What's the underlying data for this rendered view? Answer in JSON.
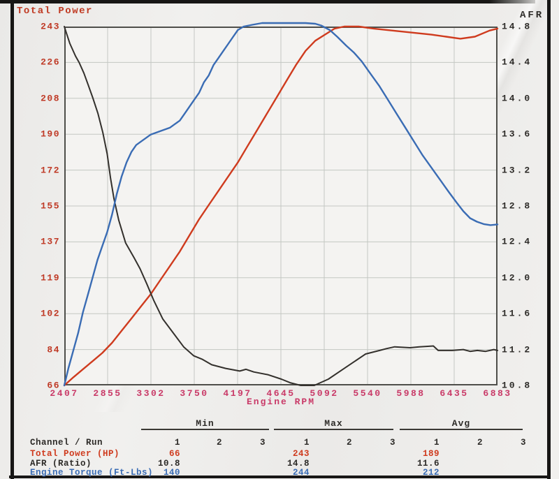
{
  "chart_data": {
    "type": "line",
    "xlabel": "Engine RPM",
    "grid": true,
    "x_axis": {
      "min": 2407,
      "max": 6883,
      "ticks": [
        2407,
        2855,
        3302,
        3750,
        4197,
        4645,
        5092,
        5540,
        5988,
        6435,
        6883
      ]
    },
    "left_axis": {
      "title": "Total Power",
      "min": 66,
      "max": 243,
      "ticks": [
        243,
        226,
        208,
        190,
        172,
        155,
        137,
        119,
        102,
        84,
        66
      ]
    },
    "right_axis": {
      "title": "AFR",
      "min": 10.8,
      "max": 14.8,
      "ticks": [
        "14.8",
        "14.4",
        "14.0",
        "13.6",
        "13.2",
        "12.8",
        "12.4",
        "12.0",
        "11.6",
        "11.2",
        "10.8"
      ]
    },
    "series": [
      {
        "name": "Total Power (HP)",
        "color": "#cf3b1e",
        "scale_min": 66,
        "scale_max": 243,
        "points": [
          [
            2407,
            66
          ],
          [
            2500,
            70
          ],
          [
            2600,
            74
          ],
          [
            2700,
            78
          ],
          [
            2800,
            82
          ],
          [
            2900,
            87
          ],
          [
            3000,
            93
          ],
          [
            3100,
            99
          ],
          [
            3200,
            105
          ],
          [
            3300,
            111
          ],
          [
            3400,
            118
          ],
          [
            3500,
            125
          ],
          [
            3600,
            132
          ],
          [
            3700,
            140
          ],
          [
            3800,
            148
          ],
          [
            3900,
            155
          ],
          [
            4000,
            162
          ],
          [
            4100,
            169
          ],
          [
            4200,
            176
          ],
          [
            4300,
            184
          ],
          [
            4400,
            192
          ],
          [
            4500,
            200
          ],
          [
            4600,
            208
          ],
          [
            4700,
            216
          ],
          [
            4800,
            224
          ],
          [
            4900,
            231
          ],
          [
            5000,
            236
          ],
          [
            5100,
            239
          ],
          [
            5200,
            242
          ],
          [
            5300,
            243
          ],
          [
            5450,
            243
          ],
          [
            5600,
            242
          ],
          [
            5800,
            241
          ],
          [
            6000,
            240
          ],
          [
            6200,
            239
          ],
          [
            6350,
            238
          ],
          [
            6500,
            237
          ],
          [
            6650,
            238
          ],
          [
            6800,
            241
          ],
          [
            6883,
            242
          ]
        ]
      },
      {
        "name": "AFR (Ratio)",
        "color": "#33302c",
        "scale_min": 10.8,
        "scale_max": 14.8,
        "points": [
          [
            2407,
            14.8
          ],
          [
            2465,
            14.61
          ],
          [
            2523,
            14.47
          ],
          [
            2560,
            14.4
          ],
          [
            2610,
            14.28
          ],
          [
            2650,
            14.16
          ],
          [
            2700,
            14.01
          ],
          [
            2755,
            13.83
          ],
          [
            2805,
            13.62
          ],
          [
            2850,
            13.38
          ],
          [
            2885,
            13.11
          ],
          [
            2920,
            12.88
          ],
          [
            2970,
            12.64
          ],
          [
            3040,
            12.39
          ],
          [
            3130,
            12.22
          ],
          [
            3190,
            12.1
          ],
          [
            3260,
            11.93
          ],
          [
            3330,
            11.75
          ],
          [
            3425,
            11.54
          ],
          [
            3550,
            11.36
          ],
          [
            3640,
            11.23
          ],
          [
            3745,
            11.13
          ],
          [
            3835,
            11.09
          ],
          [
            3930,
            11.03
          ],
          [
            4075,
            10.99
          ],
          [
            4220,
            10.96
          ],
          [
            4285,
            10.98
          ],
          [
            4365,
            10.95
          ],
          [
            4510,
            10.92
          ],
          [
            4650,
            10.87
          ],
          [
            4740,
            10.83
          ],
          [
            4850,
            10.8
          ],
          [
            4990,
            10.8
          ],
          [
            5135,
            10.87
          ],
          [
            5300,
            10.99
          ],
          [
            5520,
            11.15
          ],
          [
            5665,
            11.19
          ],
          [
            5735,
            11.21
          ],
          [
            5820,
            11.23
          ],
          [
            5980,
            11.22
          ],
          [
            6075,
            11.23
          ],
          [
            6220,
            11.24
          ],
          [
            6270,
            11.19
          ],
          [
            6415,
            11.19
          ],
          [
            6530,
            11.2
          ],
          [
            6600,
            11.18
          ],
          [
            6675,
            11.19
          ],
          [
            6760,
            11.18
          ],
          [
            6845,
            11.2
          ],
          [
            6883,
            11.19
          ]
        ]
      },
      {
        "name": "Engine Torque (Ft-Lbs)",
        "color": "#3a6cb4",
        "scale_min": 140,
        "scale_max": 243,
        "points": [
          [
            2407,
            140
          ],
          [
            2450,
            145
          ],
          [
            2500,
            150
          ],
          [
            2550,
            155
          ],
          [
            2600,
            161
          ],
          [
            2650,
            166
          ],
          [
            2700,
            171
          ],
          [
            2750,
            176
          ],
          [
            2800,
            180
          ],
          [
            2850,
            184
          ],
          [
            2900,
            189
          ],
          [
            2950,
            195
          ],
          [
            3000,
            200
          ],
          [
            3050,
            204
          ],
          [
            3100,
            207
          ],
          [
            3150,
            209
          ],
          [
            3200,
            210
          ],
          [
            3250,
            211
          ],
          [
            3300,
            212
          ],
          [
            3400,
            213
          ],
          [
            3500,
            214
          ],
          [
            3550,
            215
          ],
          [
            3600,
            216
          ],
          [
            3650,
            218
          ],
          [
            3700,
            220
          ],
          [
            3750,
            222
          ],
          [
            3800,
            224
          ],
          [
            3850,
            227
          ],
          [
            3900,
            229
          ],
          [
            3950,
            232
          ],
          [
            4000,
            234
          ],
          [
            4050,
            236
          ],
          [
            4100,
            238
          ],
          [
            4150,
            240
          ],
          [
            4200,
            242
          ],
          [
            4260,
            243
          ],
          [
            4350,
            243.5
          ],
          [
            4450,
            244
          ],
          [
            4600,
            244
          ],
          [
            4750,
            244
          ],
          [
            4900,
            244
          ],
          [
            5000,
            243.8
          ],
          [
            5060,
            243.3
          ],
          [
            5150,
            242
          ],
          [
            5230,
            240
          ],
          [
            5320,
            237.5
          ],
          [
            5400,
            235.5
          ],
          [
            5480,
            233
          ],
          [
            5570,
            229.5
          ],
          [
            5660,
            226
          ],
          [
            5750,
            222
          ],
          [
            5840,
            218
          ],
          [
            5930,
            214
          ],
          [
            6020,
            210
          ],
          [
            6110,
            206
          ],
          [
            6200,
            202.5
          ],
          [
            6290,
            199
          ],
          [
            6380,
            195.5
          ],
          [
            6460,
            192.5
          ],
          [
            6530,
            190
          ],
          [
            6600,
            188
          ],
          [
            6670,
            187
          ],
          [
            6740,
            186.3
          ],
          [
            6810,
            186
          ],
          [
            6883,
            186.2
          ]
        ]
      }
    ]
  },
  "summary_table": {
    "row_header": "Channel / Run",
    "runs": [
      "1",
      "2",
      "3"
    ],
    "groups": [
      {
        "label": "Min",
        "key": "min"
      },
      {
        "label": "Max",
        "key": "max"
      },
      {
        "label": "Avg",
        "key": "avg"
      }
    ],
    "rows": [
      {
        "label": "Total Power (HP)",
        "color": "#cf3b1e",
        "min": "66",
        "max": "243",
        "avg": "189"
      },
      {
        "label": "AFR (Ratio)",
        "color": "#2d2b28",
        "min": "10.8",
        "max": "14.8",
        "avg": "11.6"
      },
      {
        "label": "Engine Torque (Ft-Lbs)",
        "color": "#3a6cb4",
        "min": "140",
        "max": "244",
        "avg": "212"
      }
    ]
  },
  "colors": {
    "left_tick": "#bf3a26",
    "right_tick": "#2d2b28",
    "x_tick": "#c93a68",
    "grid": "#c3c7c2",
    "frame": "#4e4e4a",
    "paper": "#efeeec"
  }
}
